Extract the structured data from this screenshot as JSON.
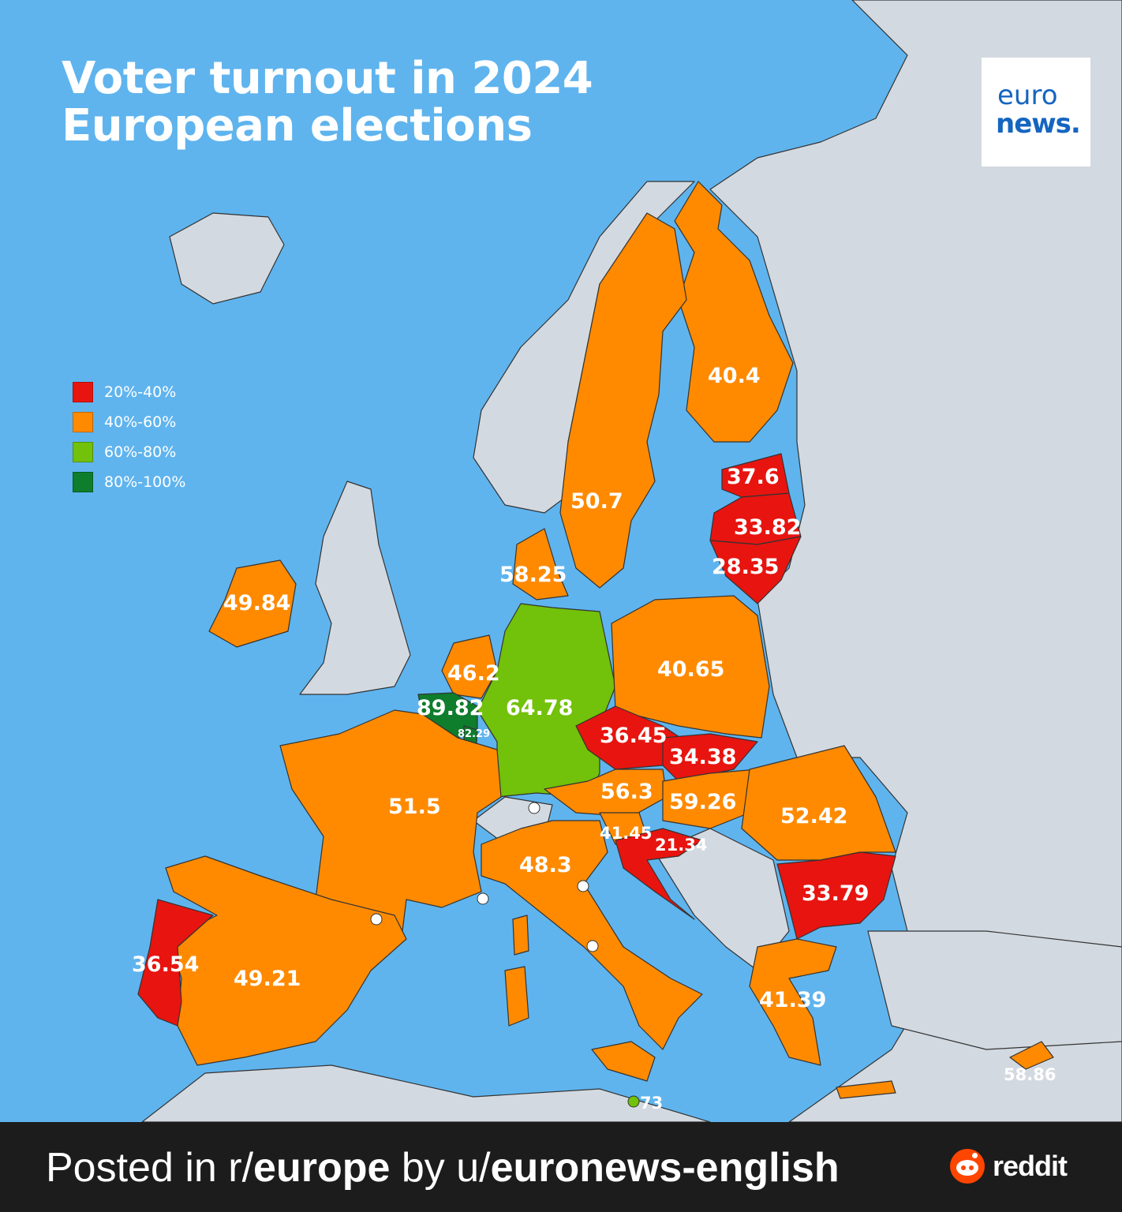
{
  "title_line1": "Voter turnout in 2024",
  "title_line2": "European elections",
  "logo_line1": "euro",
  "logo_line2": "news.",
  "legend": [
    {
      "label": "20%-40%",
      "color": "#e8140f"
    },
    {
      "label": "40%-60%",
      "color": "#ff8a00"
    },
    {
      "label": "60%-80%",
      "color": "#72c10a"
    },
    {
      "label": "80%-100%",
      "color": "#0e7d2c"
    }
  ],
  "colors": {
    "sea": "#5fb4ee",
    "land": "#d3d9e0",
    "red": "#e8140f",
    "orange": "#ff8a00",
    "light_green": "#72c10a",
    "dark_green": "#0e7d2c"
  },
  "turnout": {
    "finland": "40.4",
    "sweden": "50.7",
    "estonia": "37.6",
    "latvia": "33.82",
    "lithuania": "28.35",
    "denmark": "58.25",
    "ireland": "49.84",
    "netherlands": "46.2",
    "belgium": "89.82",
    "luxembourg": "82.29",
    "germany": "64.78",
    "poland": "40.65",
    "czechia": "36.45",
    "slovakia": "34.38",
    "austria": "56.3",
    "hungary": "59.26",
    "romania": "52.42",
    "slovenia": "41.45",
    "croatia": "21.34",
    "france": "51.5",
    "italy": "48.3",
    "bulgaria": "33.79",
    "portugal": "36.54",
    "spain": "49.21",
    "greece": "41.39",
    "cyprus": "58.86",
    "malta": "73"
  },
  "footer": {
    "prefix": "Posted in r/",
    "subreddit": "europe",
    "mid": " by u/",
    "user": "euronews-english",
    "brand": "reddit"
  }
}
